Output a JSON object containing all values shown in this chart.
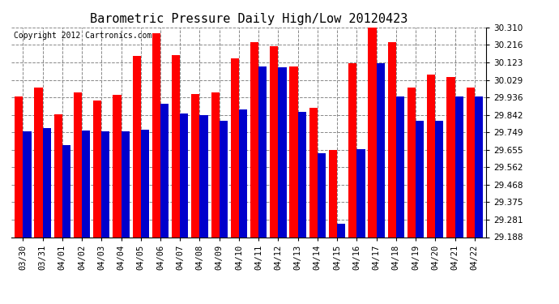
{
  "title": "Barometric Pressure Daily High/Low 20120423",
  "copyright": "Copyright 2012 Cartronics.com",
  "dates": [
    "03/30",
    "03/31",
    "04/01",
    "04/02",
    "04/03",
    "04/04",
    "04/05",
    "04/06",
    "04/07",
    "04/08",
    "04/09",
    "04/10",
    "04/11",
    "04/12",
    "04/13",
    "04/14",
    "04/15",
    "04/16",
    "04/17",
    "04/18",
    "04/19",
    "04/20",
    "04/21",
    "04/22"
  ],
  "highs": [
    29.94,
    29.99,
    29.845,
    29.96,
    29.92,
    29.95,
    30.155,
    30.28,
    30.16,
    29.955,
    29.96,
    30.145,
    30.23,
    30.21,
    30.1,
    29.88,
    29.655,
    30.12,
    30.335,
    30.23,
    29.99,
    30.058,
    30.045,
    29.99
  ],
  "lows": [
    29.752,
    29.77,
    29.68,
    29.76,
    29.755,
    29.755,
    29.762,
    29.9,
    29.85,
    29.84,
    29.812,
    29.872,
    30.1,
    30.095,
    29.86,
    29.638,
    29.26,
    29.66,
    30.12,
    29.94,
    29.81,
    29.812,
    29.94,
    29.94
  ],
  "high_color": "#ff0000",
  "low_color": "#0000cc",
  "bg_color": "#ffffff",
  "grid_color": "#888888",
  "title_fontsize": 11,
  "copyright_fontsize": 7,
  "ymin": 29.188,
  "ymax": 30.31,
  "yticks": [
    29.188,
    29.281,
    29.375,
    29.468,
    29.562,
    29.655,
    29.749,
    29.842,
    29.936,
    30.029,
    30.123,
    30.216,
    30.31
  ]
}
